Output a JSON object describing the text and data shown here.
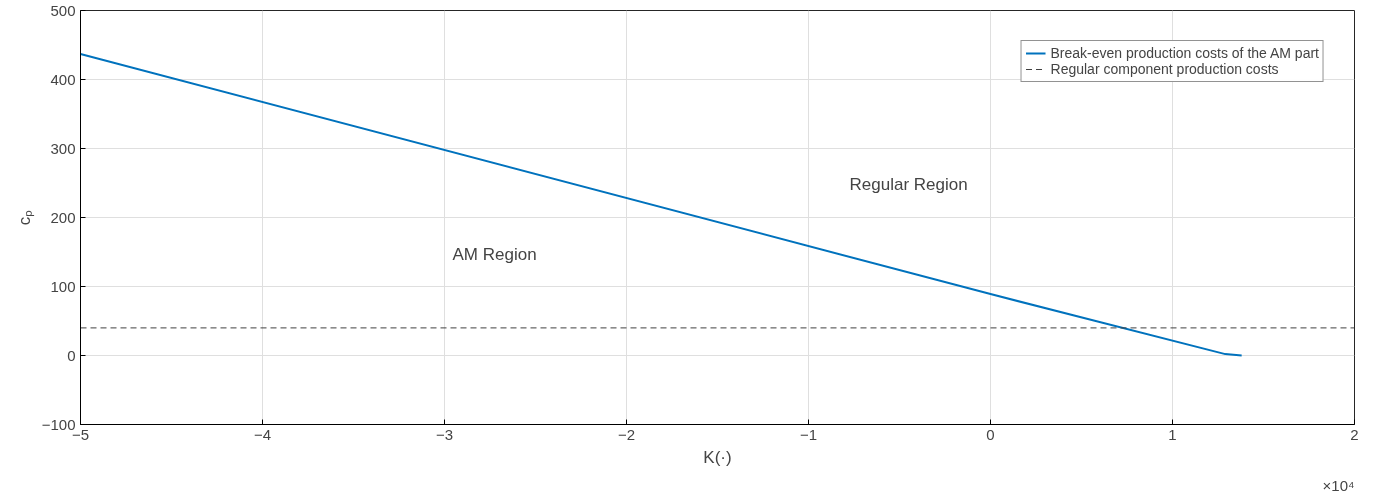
{
  "chart_data": {
    "type": "line",
    "xlabel": "K(·)",
    "ylabel": "cₚ",
    "xlim": [
      -5,
      2
    ],
    "ylim": [
      -100,
      500
    ],
    "xticks": [
      -5,
      -4,
      -3,
      -2,
      -1,
      0,
      1,
      2
    ],
    "yticks": [
      -100,
      0,
      100,
      200,
      300,
      400,
      500
    ],
    "grid": true,
    "legend": "top right",
    "series": [
      {
        "name": "Break-even production costs of the AM part",
        "color": "#0072bd",
        "x": [
          -5,
          0,
          1.29,
          1.38
        ],
        "values": [
          437,
          89,
          2,
          0
        ],
        "line_style": "solid"
      },
      {
        "name": "Regular component production costs",
        "color": "#404040",
        "x": [
          -5,
          2
        ],
        "values": [
          40,
          40
        ],
        "line_style": "dashed"
      }
    ],
    "annotations": [
      "Regular Region",
      "AM Region",
      "×10⁴"
    ]
  }
}
